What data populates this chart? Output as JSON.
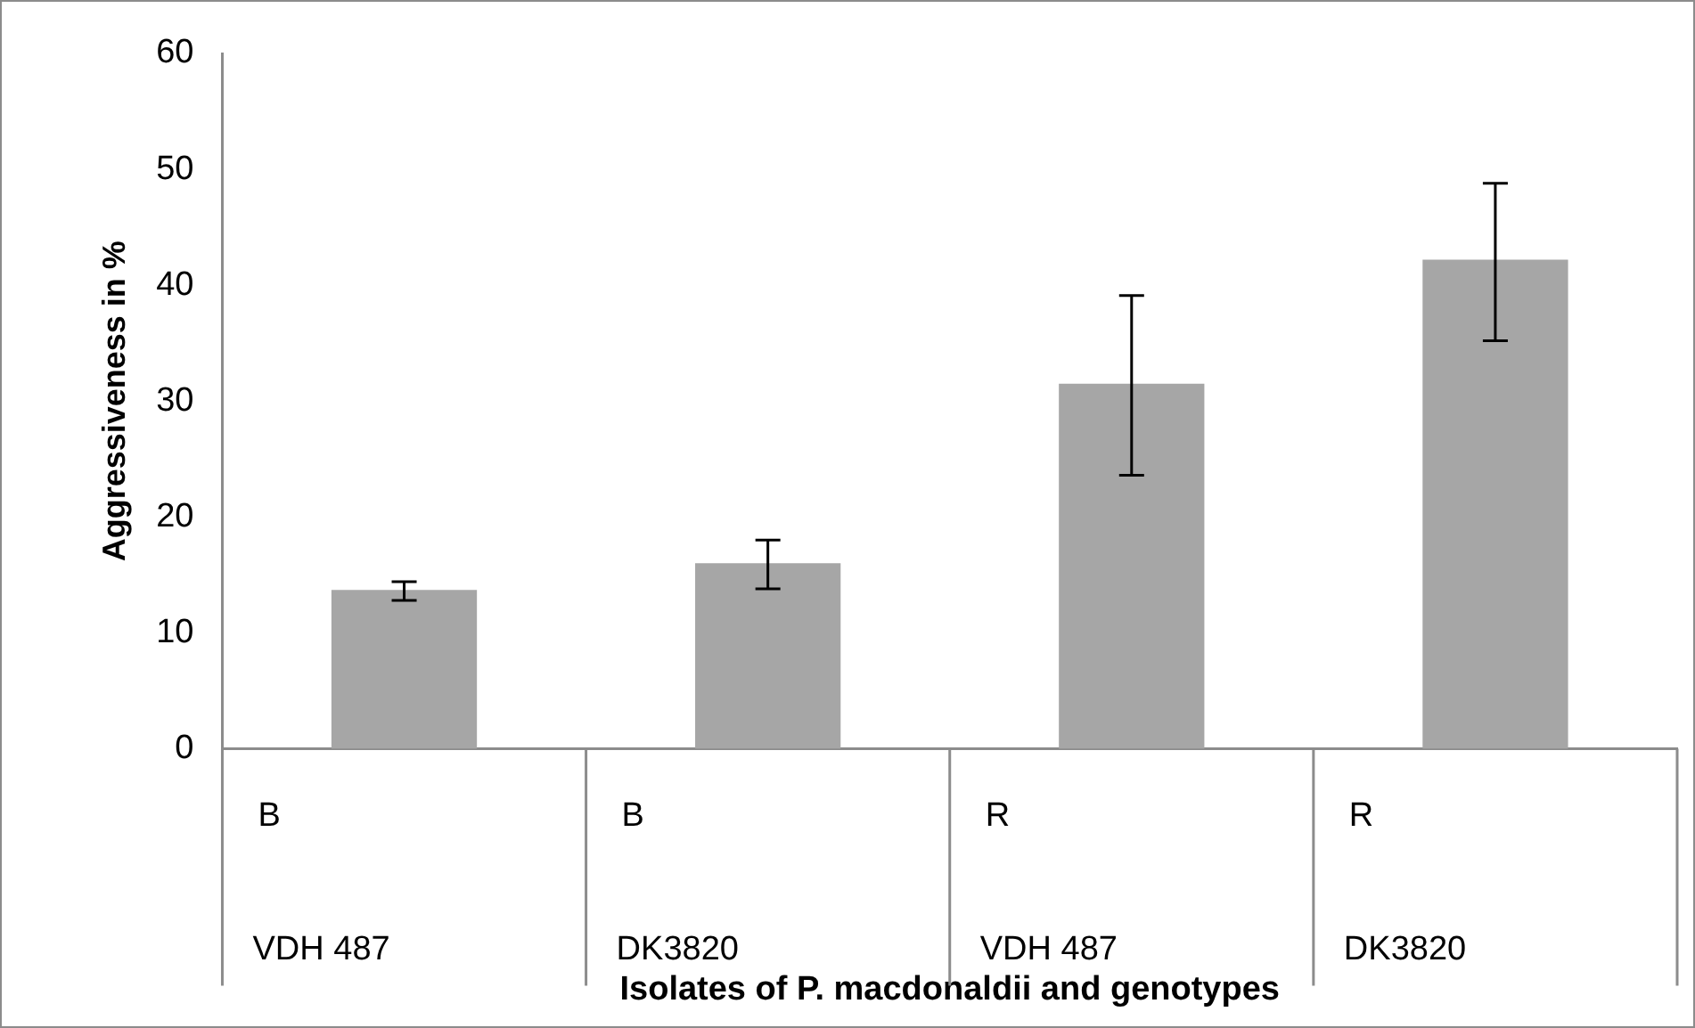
{
  "chart_data": {
    "type": "bar",
    "xlabel": "Isolates of P. macdonaldii and genotypes",
    "ylabel": "Aggressiveness in %",
    "categories": [
      "VDH 487",
      "DK3820",
      "VDH 487",
      "DK3820"
    ],
    "values": [
      13.7,
      16.0,
      31.5,
      42.2
    ],
    "errors": [
      [
        12.8,
        14.4
      ],
      [
        13.8,
        18.0
      ],
      [
        23.6,
        39.1
      ],
      [
        35.2,
        48.8
      ]
    ],
    "annotations": [
      "B",
      "B",
      "R",
      "R"
    ],
    "color": "#a6a6a6",
    "ylim": [
      0,
      60
    ],
    "yticks": [
      0,
      10,
      20,
      30,
      40,
      50,
      60
    ],
    "grid": false,
    "legend": false
  }
}
